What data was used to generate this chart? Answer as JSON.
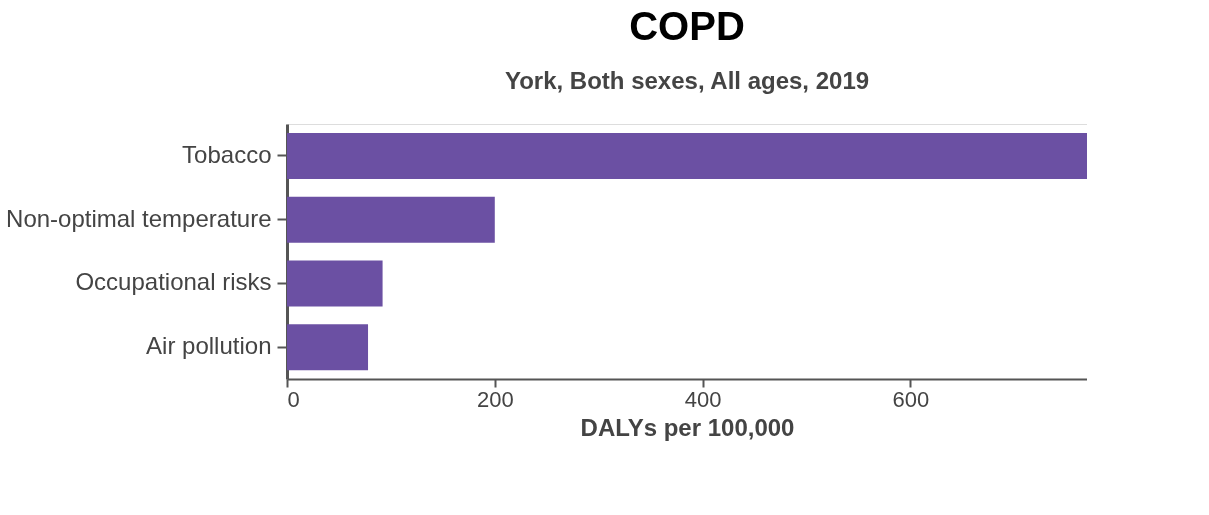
{
  "chart_data": {
    "type": "bar",
    "orientation": "horizontal",
    "title": "COPD",
    "subtitle": "York, Both sexes, All ages, 2019",
    "xlabel": "DALYs per 100,000",
    "categories": [
      "Tobacco",
      "Non-optimal temperature",
      "Occupational risks",
      "Air pollution"
    ],
    "values": [
      770,
      200,
      92,
      78
    ],
    "color": "#6b50a3",
    "xlim": [
      0,
      770
    ],
    "xticks": [
      0,
      200,
      400,
      600
    ]
  }
}
